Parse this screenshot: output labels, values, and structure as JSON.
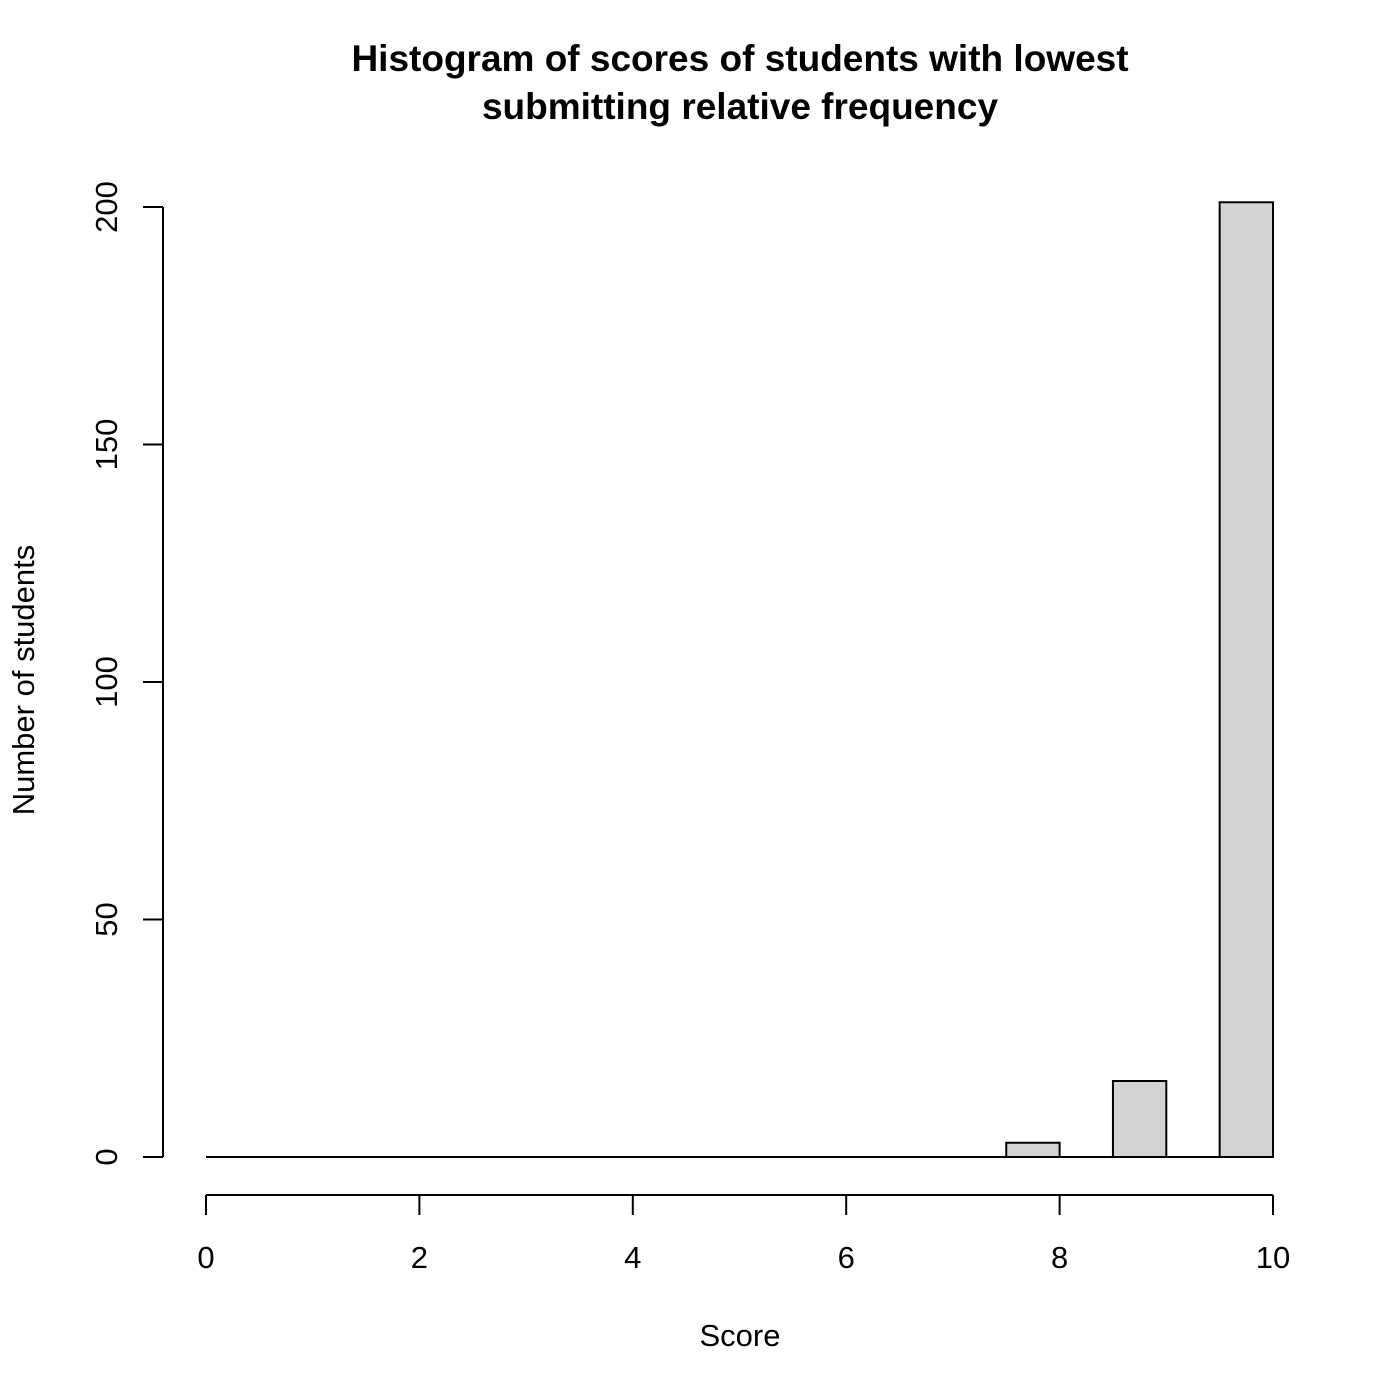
{
  "chart_data": {
    "type": "bar",
    "title_lines": [
      "Histogram of scores of students with lowest",
      "submitting relative frequency"
    ],
    "xlabel": "Score",
    "ylabel": "Number of students",
    "bins": [
      {
        "x0": 0,
        "x1": 0.5,
        "count": 0
      },
      {
        "x0": 0.5,
        "x1": 1,
        "count": 0
      },
      {
        "x0": 1,
        "x1": 1.5,
        "count": 0
      },
      {
        "x0": 1.5,
        "x1": 2,
        "count": 0
      },
      {
        "x0": 2,
        "x1": 2.5,
        "count": 0
      },
      {
        "x0": 2.5,
        "x1": 3,
        "count": 0
      },
      {
        "x0": 3,
        "x1": 3.5,
        "count": 0
      },
      {
        "x0": 3.5,
        "x1": 4,
        "count": 0
      },
      {
        "x0": 4,
        "x1": 4.5,
        "count": 0
      },
      {
        "x0": 4.5,
        "x1": 5,
        "count": 0
      },
      {
        "x0": 5,
        "x1": 5.5,
        "count": 0
      },
      {
        "x0": 5.5,
        "x1": 6,
        "count": 0
      },
      {
        "x0": 6,
        "x1": 6.5,
        "count": 0
      },
      {
        "x0": 6.5,
        "x1": 7,
        "count": 0
      },
      {
        "x0": 7,
        "x1": 7.5,
        "count": 0
      },
      {
        "x0": 7.5,
        "x1": 8,
        "count": 3
      },
      {
        "x0": 8,
        "x1": 8.5,
        "count": 0
      },
      {
        "x0": 8.5,
        "x1": 9,
        "count": 16
      },
      {
        "x0": 9,
        "x1": 9.5,
        "count": 0
      },
      {
        "x0": 9.5,
        "x1": 10,
        "count": 201
      }
    ],
    "xlim": [
      0,
      10
    ],
    "ylim": [
      0,
      200
    ],
    "x_ticks": [
      "0",
      "2",
      "4",
      "6",
      "8",
      "10"
    ],
    "y_ticks": [
      "0",
      "50",
      "100",
      "150",
      "200"
    ],
    "bar_color": "#d3d3d3",
    "grid": false,
    "legend": "none"
  }
}
